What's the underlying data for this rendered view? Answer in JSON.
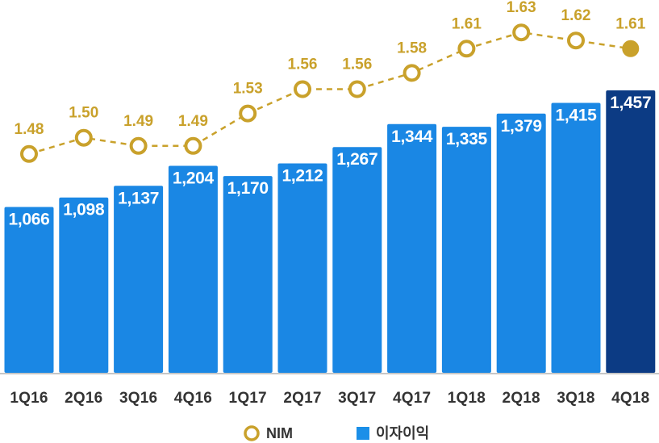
{
  "chart_data": {
    "type": "bar",
    "categories": [
      "1Q16",
      "2Q16",
      "3Q16",
      "4Q16",
      "1Q17",
      "2Q17",
      "3Q17",
      "4Q17",
      "1Q18",
      "2Q18",
      "3Q18",
      "4Q18"
    ],
    "series": [
      {
        "name": "이자이익",
        "type": "bar",
        "axis": "left",
        "values": [
          1066,
          1098,
          1137,
          1204,
          1170,
          1212,
          1267,
          1344,
          1335,
          1379,
          1415,
          1457
        ],
        "highlight_index": 11
      },
      {
        "name": "NIM",
        "type": "line",
        "axis": "right",
        "line_style": "dashed",
        "marker": "hollow-circle",
        "values": [
          1.48,
          1.5,
          1.49,
          1.49,
          1.53,
          1.56,
          1.56,
          1.58,
          1.61,
          1.63,
          1.62,
          1.61
        ],
        "highlight_index": 11
      }
    ],
    "ylim": [
      510,
      1760
    ],
    "y2lim": [
      1.21,
      1.67
    ],
    "axes_visible": false,
    "grid": false,
    "data_labels": true,
    "legend": "bottom-center",
    "colors": {
      "bar": "#1a87e4",
      "bar_highlight": "#0c3b84",
      "line": "#c9a12b",
      "bar_label": "#ffffff",
      "line_label": "#c9a12b",
      "category_text": "#333333",
      "baseline": "#c6c6c6",
      "legend_bar": "#1b8fe8"
    }
  }
}
